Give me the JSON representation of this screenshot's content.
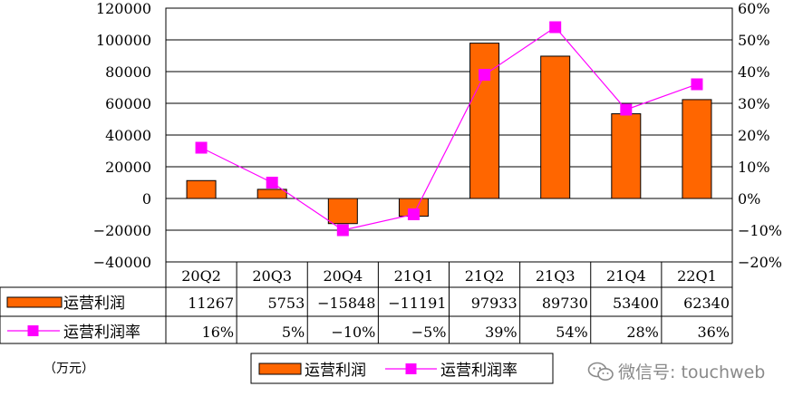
{
  "chart_data": {
    "type": "bar",
    "categories": [
      "20Q2",
      "20Q3",
      "20Q4",
      "21Q1",
      "21Q2",
      "21Q3",
      "21Q4",
      "22Q1"
    ],
    "series": [
      {
        "name": "运营利润",
        "kind": "bar",
        "axis": "left",
        "values": [
          11267,
          5753,
          -15848,
          -11191,
          97933,
          89730,
          53400,
          62340
        ],
        "labels": [
          "11267",
          "5753",
          "-15848",
          "-11191",
          "97933",
          "89730",
          "53400",
          "62340"
        ],
        "color": "#ff6600"
      },
      {
        "name": "运营利润率",
        "kind": "line",
        "axis": "right",
        "values": [
          16,
          5,
          -10,
          -5,
          39,
          54,
          28,
          36
        ],
        "labels": [
          "16%",
          "5%",
          "-10%",
          "-5%",
          "39%",
          "54%",
          "28%",
          "36%"
        ],
        "color": "#ff00ff"
      }
    ],
    "left_axis": {
      "ylim": [
        -40000,
        120000
      ],
      "ticks": [
        "120000",
        "100000",
        "80000",
        "60000",
        "40000",
        "20000",
        "0",
        "-20000",
        "-40000"
      ]
    },
    "right_axis": {
      "ylim": [
        -20,
        60
      ],
      "ticks": [
        "60%",
        "50%",
        "40%",
        "30%",
        "20%",
        "10%",
        "0%",
        "-10%",
        "-20%"
      ]
    },
    "unit_label": "（万元）",
    "grid": true,
    "legend": [
      "运营利润",
      "运营利润率"
    ],
    "legend_position": "bottom"
  },
  "watermark": "微信号: touchweb",
  "watermark_icon": "wechat-icon"
}
